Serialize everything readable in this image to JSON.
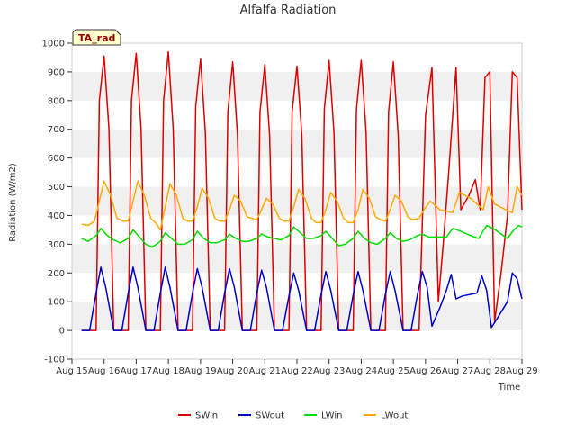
{
  "chart_data": {
    "type": "line",
    "title": "Alfalfa Radiation",
    "xlabel": "Time",
    "ylabel": "Radiation (W/m2)",
    "badge": "TA_rad",
    "xlim": [
      15,
      29
    ],
    "ylim": [
      -100,
      1000
    ],
    "yticks": [
      -100,
      0,
      100,
      200,
      300,
      400,
      500,
      600,
      700,
      800,
      900,
      1000
    ],
    "xticks": [
      15,
      16,
      17,
      18,
      19,
      20,
      21,
      22,
      23,
      24,
      25,
      26,
      27,
      28,
      29
    ],
    "xtick_labels": [
      "Aug 15",
      "Aug 16",
      "Aug 17",
      "Aug 18",
      "Aug 19",
      "Aug 20",
      "Aug 21",
      "Aug 22",
      "Aug 23",
      "Aug 24",
      "Aug 25",
      "Aug 26",
      "Aug 27",
      "Aug 28",
      "Aug 29"
    ],
    "grid": "horizontal bands",
    "series": [
      {
        "name": "SWin",
        "color": "#dd0000",
        "x": [
          15.3,
          15.5,
          15.75,
          15.85,
          16.0,
          16.15,
          16.3,
          16.5,
          16.75,
          16.85,
          17.0,
          17.15,
          17.3,
          17.5,
          17.75,
          17.85,
          18.0,
          18.15,
          18.3,
          18.5,
          18.75,
          18.85,
          19.0,
          19.15,
          19.3,
          19.5,
          19.75,
          19.85,
          20.0,
          20.15,
          20.3,
          20.5,
          20.75,
          20.85,
          21.0,
          21.15,
          21.3,
          21.5,
          21.75,
          21.85,
          22.0,
          22.15,
          22.3,
          22.5,
          22.75,
          22.85,
          23.0,
          23.15,
          23.3,
          23.5,
          23.75,
          23.85,
          24.0,
          24.15,
          24.3,
          24.5,
          24.75,
          24.85,
          25.0,
          25.15,
          25.3,
          25.5,
          25.8,
          26.0,
          26.2,
          26.4,
          26.55,
          26.72,
          26.95,
          27.1,
          27.35,
          27.55,
          27.7,
          27.85,
          28.0,
          28.15,
          28.35,
          28.55,
          28.7,
          28.85,
          29.0
        ],
        "values": [
          0,
          0,
          0,
          800,
          955,
          700,
          0,
          0,
          0,
          800,
          965,
          700,
          0,
          0,
          0,
          800,
          970,
          700,
          0,
          0,
          0,
          780,
          945,
          690,
          0,
          0,
          0,
          760,
          935,
          680,
          0,
          0,
          0,
          760,
          925,
          680,
          0,
          0,
          0,
          760,
          920,
          680,
          0,
          0,
          0,
          770,
          940,
          690,
          0,
          0,
          0,
          770,
          940,
          690,
          0,
          0,
          0,
          760,
          935,
          680,
          0,
          0,
          0,
          750,
          915,
          100,
          300,
          550,
          915,
          420,
          470,
          525,
          420,
          880,
          900,
          30,
          200,
          400,
          900,
          880,
          420
        ]
      },
      {
        "name": "SWout",
        "color": "#0000cc",
        "x": [
          15.3,
          15.55,
          15.75,
          15.9,
          16.05,
          16.3,
          16.55,
          16.75,
          16.9,
          17.05,
          17.3,
          17.55,
          17.75,
          17.9,
          18.05,
          18.3,
          18.55,
          18.75,
          18.9,
          19.05,
          19.3,
          19.55,
          19.75,
          19.9,
          20.05,
          20.3,
          20.55,
          20.75,
          20.9,
          21.05,
          21.3,
          21.55,
          21.75,
          21.9,
          22.05,
          22.3,
          22.55,
          22.75,
          22.9,
          23.05,
          23.3,
          23.55,
          23.75,
          23.9,
          24.05,
          24.3,
          24.55,
          24.75,
          24.9,
          25.05,
          25.3,
          25.55,
          25.75,
          25.9,
          26.05,
          26.2,
          26.45,
          26.65,
          26.8,
          26.95,
          27.15,
          27.6,
          27.75,
          27.9,
          28.05,
          28.25,
          28.55,
          28.7,
          28.85,
          29.0
        ],
        "values": [
          0,
          0,
          130,
          220,
          150,
          0,
          0,
          130,
          220,
          150,
          0,
          0,
          130,
          220,
          150,
          0,
          0,
          130,
          215,
          150,
          0,
          0,
          130,
          215,
          150,
          0,
          0,
          130,
          210,
          150,
          0,
          0,
          120,
          200,
          140,
          0,
          0,
          125,
          205,
          140,
          0,
          0,
          125,
          205,
          140,
          0,
          0,
          125,
          205,
          140,
          0,
          0,
          125,
          205,
          150,
          15,
          80,
          140,
          195,
          110,
          120,
          130,
          190,
          140,
          10,
          45,
          100,
          200,
          180,
          110
        ]
      },
      {
        "name": "LWin",
        "color": "#00dd00",
        "x": [
          15.3,
          15.5,
          15.75,
          15.9,
          16.1,
          16.3,
          16.5,
          16.75,
          16.9,
          17.1,
          17.3,
          17.5,
          17.75,
          17.9,
          18.1,
          18.3,
          18.5,
          18.75,
          18.9,
          19.1,
          19.3,
          19.5,
          19.75,
          19.9,
          20.1,
          20.3,
          20.5,
          20.75,
          20.9,
          21.1,
          21.3,
          21.5,
          21.75,
          21.9,
          22.1,
          22.3,
          22.5,
          22.75,
          22.9,
          23.1,
          23.3,
          23.5,
          23.75,
          23.9,
          24.1,
          24.3,
          24.5,
          24.75,
          24.9,
          25.1,
          25.3,
          25.5,
          25.75,
          25.9,
          26.1,
          26.4,
          26.65,
          26.85,
          27.1,
          27.4,
          27.65,
          27.9,
          28.1,
          28.3,
          28.55,
          28.75,
          28.9,
          29.0
        ],
        "values": [
          320,
          310,
          330,
          355,
          330,
          315,
          305,
          320,
          350,
          325,
          300,
          290,
          310,
          340,
          320,
          300,
          300,
          315,
          345,
          320,
          305,
          305,
          315,
          335,
          320,
          310,
          310,
          320,
          335,
          325,
          320,
          315,
          330,
          360,
          340,
          320,
          320,
          330,
          345,
          320,
          295,
          300,
          320,
          345,
          320,
          305,
          300,
          320,
          340,
          320,
          310,
          315,
          330,
          335,
          325,
          325,
          325,
          355,
          345,
          330,
          320,
          365,
          355,
          340,
          320,
          350,
          365,
          360
        ]
      },
      {
        "name": "LWout",
        "color": "#ffaa00",
        "x": [
          15.3,
          15.5,
          15.7,
          15.85,
          16.0,
          16.2,
          16.4,
          16.6,
          16.75,
          16.9,
          17.05,
          17.25,
          17.45,
          17.6,
          17.75,
          17.9,
          18.05,
          18.25,
          18.45,
          18.6,
          18.75,
          18.9,
          19.05,
          19.25,
          19.45,
          19.6,
          19.75,
          19.9,
          20.05,
          20.25,
          20.45,
          20.6,
          20.75,
          20.9,
          21.05,
          21.25,
          21.45,
          21.6,
          21.75,
          21.9,
          22.05,
          22.25,
          22.45,
          22.6,
          22.75,
          22.9,
          23.05,
          23.25,
          23.45,
          23.6,
          23.75,
          23.9,
          24.05,
          24.25,
          24.45,
          24.6,
          24.75,
          24.9,
          25.05,
          25.25,
          25.45,
          25.6,
          25.8,
          25.95,
          26.15,
          26.45,
          26.65,
          26.85,
          27.05,
          27.4,
          27.6,
          27.8,
          27.95,
          28.15,
          28.5,
          28.7,
          28.85,
          29.0
        ],
        "values": [
          370,
          365,
          380,
          450,
          520,
          470,
          390,
          380,
          380,
          450,
          520,
          470,
          390,
          375,
          350,
          430,
          510,
          470,
          390,
          380,
          380,
          430,
          495,
          460,
          390,
          380,
          380,
          420,
          470,
          450,
          395,
          390,
          385,
          420,
          460,
          440,
          390,
          380,
          380,
          430,
          490,
          460,
          390,
          375,
          375,
          420,
          480,
          450,
          390,
          375,
          375,
          420,
          490,
          460,
          395,
          385,
          380,
          420,
          470,
          450,
          395,
          385,
          390,
          420,
          450,
          420,
          415,
          410,
          480,
          460,
          440,
          420,
          500,
          440,
          420,
          410,
          500,
          470
        ]
      }
    ],
    "legend": {
      "placement": "bottom-center",
      "entries": [
        {
          "label": "SWin",
          "color": "#dd0000"
        },
        {
          "label": "SWout",
          "color": "#0000cc"
        },
        {
          "label": "LWin",
          "color": "#00dd00"
        },
        {
          "label": "LWout",
          "color": "#ffaa00"
        }
      ]
    }
  }
}
